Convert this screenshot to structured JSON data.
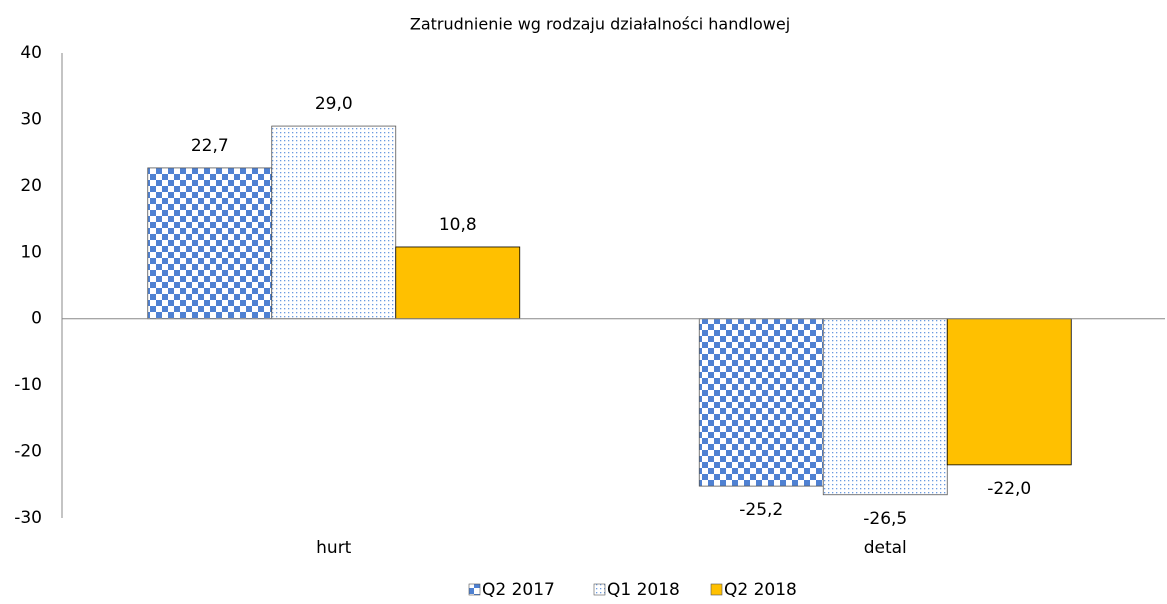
{
  "chart_data": {
    "type": "bar",
    "title": "Zatrudnienie wg rodzaju działalności handlowej",
    "categories": [
      "hurt",
      "detal"
    ],
    "series": [
      {
        "name": "Q2 2017",
        "color": "#4f81d2",
        "pattern": "checker",
        "values": [
          22.7,
          -25.2
        ],
        "value_labels": [
          "22,7",
          "-25,2"
        ]
      },
      {
        "name": "Q1 2018",
        "color": "#6a9be0",
        "pattern": "dots",
        "values": [
          29.0,
          -26.5
        ],
        "value_labels": [
          "29,0",
          "-26,5"
        ]
      },
      {
        "name": "Q2 2018",
        "color": "#ffc000",
        "pattern": "solid",
        "values": [
          10.8,
          -22.0
        ],
        "value_labels": [
          "10,8",
          "-22,0"
        ]
      }
    ],
    "ylim": [
      -30,
      40
    ],
    "yticks": [
      -30,
      -20,
      -10,
      0,
      10,
      20,
      30,
      40
    ],
    "grid": false,
    "legend": "bottom"
  }
}
